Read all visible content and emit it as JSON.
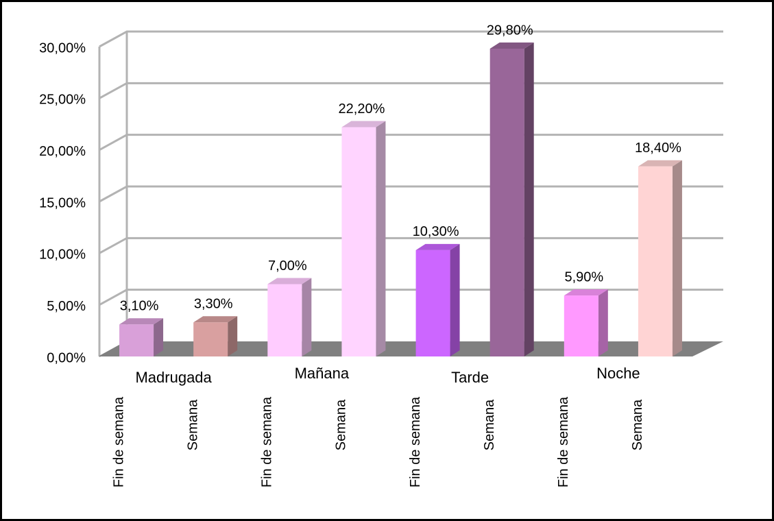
{
  "chart_data": {
    "type": "bar",
    "groups": [
      "Madrugada",
      "Mañana",
      "Tarde",
      "Noche"
    ],
    "categories": [
      "Fin de semana",
      "Semana",
      "Fin de semana",
      "Semana",
      "Fin de semana",
      "Semana",
      "Fin de semana",
      "Semana"
    ],
    "values": [
      3.1,
      3.3,
      7.0,
      22.2,
      10.3,
      29.8,
      5.9,
      18.4
    ],
    "value_labels": [
      "3,10%",
      "3,30%",
      "7,00%",
      "22,20%",
      "10,30%",
      "29,80%",
      "5,90%",
      "18,40%"
    ],
    "colors": [
      "#d9a0d9",
      "#d9a0a0",
      "#ffccff",
      "#ffd4ff",
      "#cc66ff",
      "#996699",
      "#ff99ff",
      "#ffd4d4"
    ],
    "ylim": [
      0,
      30
    ],
    "yticks": [
      {
        "value": 0,
        "label": "0,00%"
      },
      {
        "value": 5,
        "label": "5,00%"
      },
      {
        "value": 10,
        "label": "10,00%"
      },
      {
        "value": 15,
        "label": "15,00%"
      },
      {
        "value": 20,
        "label": "20,00%"
      },
      {
        "value": 25,
        "label": "25,00%"
      },
      {
        "value": 30,
        "label": "30,00%"
      }
    ],
    "grid": true
  }
}
